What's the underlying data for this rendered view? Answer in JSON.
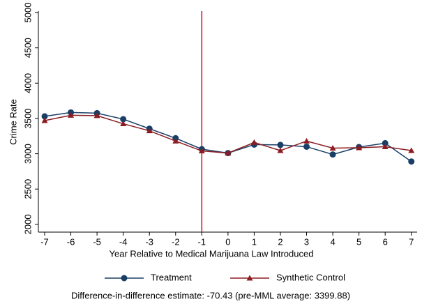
{
  "chart_data": {
    "type": "line",
    "x": [
      -7,
      -6,
      -5,
      -4,
      -3,
      -2,
      -1,
      0,
      1,
      2,
      3,
      4,
      5,
      6,
      7
    ],
    "series": [
      {
        "name": "Treatment",
        "color": "#1a3f66",
        "marker": "circle",
        "values": [
          3530,
          3585,
          3575,
          3490,
          3355,
          3220,
          3065,
          3010,
          3130,
          3125,
          3100,
          2990,
          3095,
          3150,
          2890
        ]
      },
      {
        "name": "Synthetic Control",
        "color": "#8c1c22",
        "marker": "triangle",
        "values": [
          3470,
          3545,
          3540,
          3425,
          3325,
          3180,
          3040,
          3010,
          3160,
          3045,
          3180,
          3080,
          3085,
          3100,
          3045
        ]
      }
    ],
    "xlabel": "Year Relative to Medical Marijuana Law Introduced",
    "ylabel": "Crime Rate",
    "xlim": [
      -7.24,
      7.22
    ],
    "ylim": [
      1890,
      5020
    ],
    "xticks": [
      -7,
      -6,
      -5,
      -4,
      -3,
      -2,
      -1,
      0,
      1,
      2,
      3,
      4,
      5,
      6,
      7
    ],
    "yticks": [
      2000,
      2500,
      3000,
      3500,
      4000,
      4500,
      5000
    ],
    "vline": -1,
    "vline_color": "#c8102e",
    "grid": false,
    "legend": "bottom",
    "note": "Difference-in-difference estimate: -70.43 (pre-MML average: 3399.88)"
  }
}
